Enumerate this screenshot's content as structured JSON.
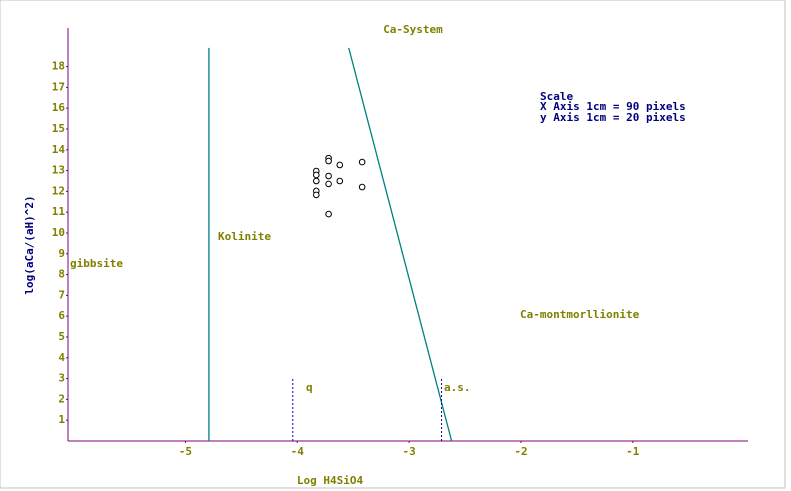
{
  "chart_data": {
    "type": "scatter",
    "title": "Ca-System",
    "x_label": "Log H4SiO4",
    "y_label": "log(aCa/(aH)^2)",
    "xlim": [
      -6.05,
      0.03
    ],
    "ylim": [
      0,
      20
    ],
    "xticks": [
      -5,
      -4,
      -3,
      -2,
      -1
    ],
    "yticks": [
      1,
      2,
      3,
      4,
      5,
      6,
      7,
      8,
      9,
      10,
      11,
      12,
      13,
      14,
      15,
      16,
      17,
      18
    ],
    "axis_color": "#800080",
    "series": [
      {
        "color": "#000000",
        "x": [
          -3.72,
          -3.72,
          -3.72,
          -3.72,
          -3.83,
          -3.83,
          -3.83,
          -3.83,
          -3.83,
          -3.62,
          -3.62,
          -3.42,
          -3.42,
          -3.72
        ],
        "values": [
          13.6,
          13.46,
          12.74,
          12.36,
          12.98,
          12.79,
          12.5,
          12.02,
          11.83,
          13.27,
          12.5,
          13.41,
          12.21,
          10.91
        ]
      }
    ],
    "lines": [
      {
        "x": [
          -4.79,
          -4.79
        ],
        "y": [
          0,
          18.9
        ],
        "color": "#008080",
        "dotted": false
      },
      {
        "x": [
          -3.54,
          -2.62
        ],
        "y": [
          18.9,
          0
        ],
        "color": "#008080",
        "dotted": false
      },
      {
        "x": [
          -4.04,
          -4.04
        ],
        "y": [
          0,
          3.0
        ],
        "color": "#0000c0",
        "dotted": true
      },
      {
        "x": [
          -2.71,
          -2.71
        ],
        "y": [
          0,
          3.0
        ],
        "color": "#0000c0",
        "dotted": true
      }
    ],
    "annotations": [
      "Scale",
      "X Axis 1cm = 90 pixels",
      "y Axis 1cm = 20 pixels",
      "gibbsite",
      "Kolinite",
      "Ca-montmorllionite",
      "q",
      "a.s."
    ]
  }
}
